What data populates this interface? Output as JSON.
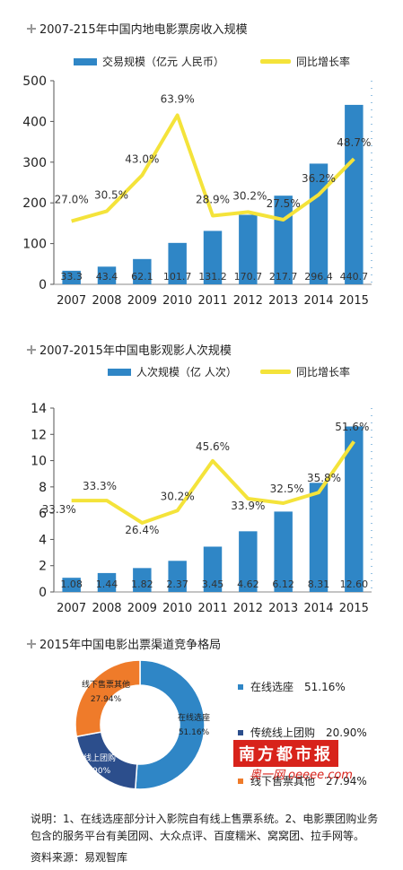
{
  "charts": {
    "revenue": {
      "title": "2007-215年中国内地电影票房收入规模",
      "legend_bar": "交易规模（亿元 人民币）",
      "legend_line": "同比增长率"
    },
    "admissions": {
      "title": "2007-2015年中国电影观影人次规模",
      "legend_bar": "人次规模（亿 人次）",
      "legend_line": "同比增长率"
    },
    "channels": {
      "title": "2015年中国电影出票渠道竞争格局",
      "legend": [
        {
          "label": "在线选座",
          "value": "51.16%",
          "color": "#2f86c6"
        },
        {
          "label": "传统线上团购",
          "value": "20.90%",
          "color": "#2c4e8c"
        },
        {
          "label": "线下售票其他",
          "value": "27.94%",
          "color": "#ef7b2a"
        }
      ],
      "slice_labels": [
        {
          "name": "在线选座",
          "value": "51.16%"
        },
        {
          "name": "传统线上团购",
          "value": "20.90%"
        },
        {
          "name": "线下售票其他",
          "value": "27.94%"
        }
      ]
    }
  },
  "notes": "说明：1、在线选座部分计入影院自有线上售票系统。2、电影票团购业务包含的服务平台有美团网、大众点评、百度糯米、窝窝团、拉手网等。",
  "source": "资料来源：易观智库",
  "watermark": {
    "main": "南方都市报",
    "sub": "奥一网 oeeee.com"
  },
  "chart_data": [
    {
      "type": "bar",
      "title": "2007-215年中国内地电影票房收入规模",
      "categories": [
        "2007",
        "2008",
        "2009",
        "2010",
        "2011",
        "2012",
        "2013",
        "2014",
        "2015"
      ],
      "series": [
        {
          "name": "交易规模（亿元 人民币）",
          "type": "bar",
          "values": [
            33.3,
            43.4,
            62.1,
            101.7,
            131.2,
            170.7,
            217.7,
            296.4,
            440.7
          ],
          "labels": [
            "33.3",
            "43.4",
            "62.1",
            "101.7",
            "131.2",
            "170.7",
            "217.7",
            "296.4",
            "440.7"
          ]
        },
        {
          "name": "同比增长率",
          "type": "line",
          "values": [
            27.0,
            30.5,
            43.0,
            63.9,
            28.9,
            30.2,
            27.5,
            36.2,
            48.7
          ],
          "labels": [
            "27.0%",
            "30.5%",
            "43.0%",
            "63.9%",
            "28.9%",
            "30.2%",
            "27.5%",
            "36.2%",
            "48.7%"
          ]
        }
      ],
      "y_ticks": [
        "0",
        "100",
        "200",
        "300",
        "400",
        "500"
      ],
      "ylim": [
        0,
        500
      ],
      "grid": false,
      "legend_position": "top"
    },
    {
      "type": "bar",
      "title": "2007-2015年中国电影观影人次规模",
      "categories": [
        "2007",
        "2008",
        "2009",
        "2010",
        "2011",
        "2012",
        "2013",
        "2014",
        "2015"
      ],
      "series": [
        {
          "name": "人次规模（亿 人次）",
          "type": "bar",
          "values": [
            1.08,
            1.44,
            1.82,
            2.37,
            3.45,
            4.62,
            6.12,
            8.31,
            12.6
          ],
          "labels": [
            "1.08",
            "1.44",
            "1.82",
            "2.37",
            "3.45",
            "4.62",
            "6.12",
            "8.31",
            "12.60"
          ]
        },
        {
          "name": "同比增长率",
          "type": "line",
          "values": [
            33.3,
            33.3,
            26.4,
            30.2,
            45.6,
            33.9,
            32.5,
            35.8,
            51.6
          ],
          "labels": [
            "33.3%",
            "33.3%",
            "26.4%",
            "30.2%",
            "45.6%",
            "33.9%",
            "32.5%",
            "35.8%",
            "51.6%"
          ]
        }
      ],
      "y_ticks": [
        "0",
        "2",
        "4",
        "6",
        "8",
        "10",
        "12",
        "14"
      ],
      "ylim": [
        0,
        14
      ],
      "grid": false,
      "legend_position": "top"
    },
    {
      "type": "pie",
      "title": "2015年中国电影出票渠道竞争格局",
      "categories": [
        "在线选座",
        "传统线上团购",
        "线下售票其他"
      ],
      "values": [
        51.16,
        20.9,
        27.94
      ],
      "colors": [
        "#2f86c6",
        "#2c4e8c",
        "#ef7b2a"
      ],
      "legend_position": "right"
    }
  ]
}
